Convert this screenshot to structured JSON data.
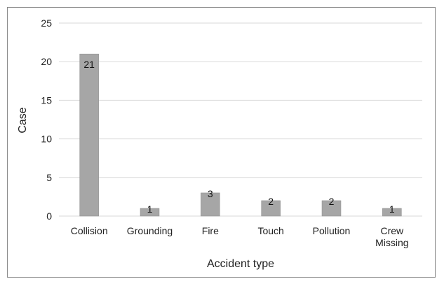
{
  "chart_data": {
    "type": "bar",
    "categories": [
      [
        "Collision"
      ],
      [
        "Grounding"
      ],
      [
        "Fire"
      ],
      [
        "Touch"
      ],
      [
        "Pollution"
      ],
      [
        "Crew",
        "Missing"
      ]
    ],
    "values": [
      21,
      1,
      3,
      2,
      2,
      1
    ],
    "xlabel": "Accident type",
    "ylabel": "Case",
    "ylim": [
      0,
      25
    ],
    "yticks": [
      "0",
      "5",
      "10",
      "15",
      "20",
      "25"
    ],
    "grid": true,
    "legend": "none",
    "colors": {
      "bar": "#a6a6a6",
      "grid": "#d9d9d9"
    }
  }
}
